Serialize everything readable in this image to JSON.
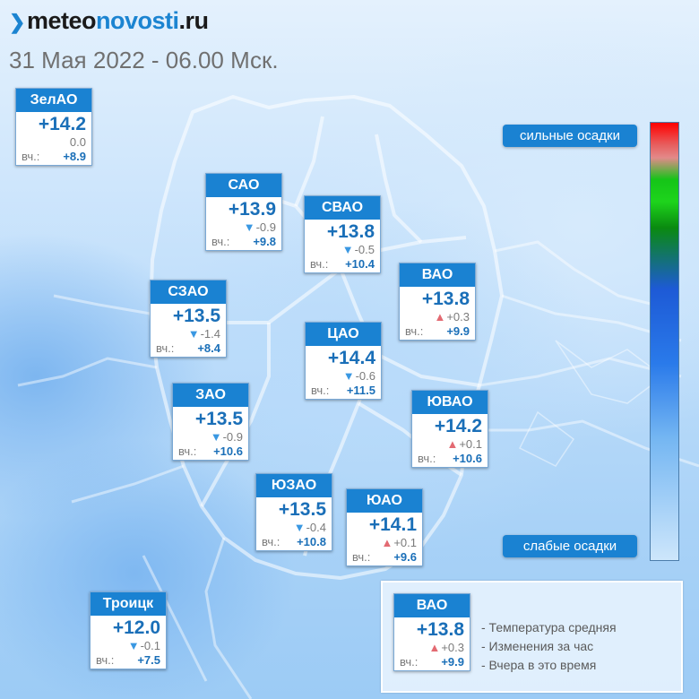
{
  "header": {
    "logo_prefix": "meteo",
    "logo_accent": "novosti",
    "logo_suffix": ".ru",
    "logo_mark": "❯",
    "subtitle": "31 Мая 2022 - 06.00 Мск."
  },
  "yesterday_label": "вч.:",
  "districts": [
    {
      "id": "zelao",
      "name": "ЗелАО",
      "temp": "+14.2",
      "trend": "none",
      "change": "0.0",
      "yesterday": "+8.9"
    },
    {
      "id": "sao",
      "name": "САО",
      "temp": "+13.9",
      "trend": "down",
      "change": "-0.9",
      "yesterday": "+9.8"
    },
    {
      "id": "svao",
      "name": "СВАО",
      "temp": "+13.8",
      "trend": "down",
      "change": "-0.5",
      "yesterday": "+10.4"
    },
    {
      "id": "vao",
      "name": "ВАО",
      "temp": "+13.8",
      "trend": "up",
      "change": "+0.3",
      "yesterday": "+9.9"
    },
    {
      "id": "szao",
      "name": "СЗАО",
      "temp": "+13.5",
      "trend": "down",
      "change": "-1.4",
      "yesterday": "+8.4"
    },
    {
      "id": "cao",
      "name": "ЦАО",
      "temp": "+14.4",
      "trend": "down",
      "change": "-0.6",
      "yesterday": "+11.5"
    },
    {
      "id": "zao",
      "name": "ЗАО",
      "temp": "+13.5",
      "trend": "down",
      "change": "-0.9",
      "yesterday": "+10.6"
    },
    {
      "id": "yuvao",
      "name": "ЮВАО",
      "temp": "+14.2",
      "trend": "up",
      "change": "+0.1",
      "yesterday": "+10.6"
    },
    {
      "id": "yuzao",
      "name": "ЮЗАО",
      "temp": "+13.5",
      "trend": "down",
      "change": "-0.4",
      "yesterday": "+10.8"
    },
    {
      "id": "yuao",
      "name": "ЮАО",
      "temp": "+14.1",
      "trend": "up",
      "change": "+0.1",
      "yesterday": "+9.6"
    },
    {
      "id": "troitsk",
      "name": "Троицк",
      "temp": "+12.0",
      "trend": "down",
      "change": "-0.1",
      "yesterday": "+7.5"
    }
  ],
  "precip_scale": {
    "strong_label": "сильные осадки",
    "weak_label": "слабые осадки"
  },
  "legend": {
    "sample": {
      "name": "ВАО",
      "temp": "+13.8",
      "trend": "up",
      "change": "+0.3",
      "yesterday": "+9.9"
    },
    "items": [
      "- Температура средняя",
      "- Изменения за час",
      "- Вчера в это время"
    ]
  },
  "colors": {
    "header_blue": "#1a82d2",
    "temp_blue": "#1a6fb8",
    "down_arrow": "#3a98e2",
    "up_arrow": "#e36a72"
  }
}
